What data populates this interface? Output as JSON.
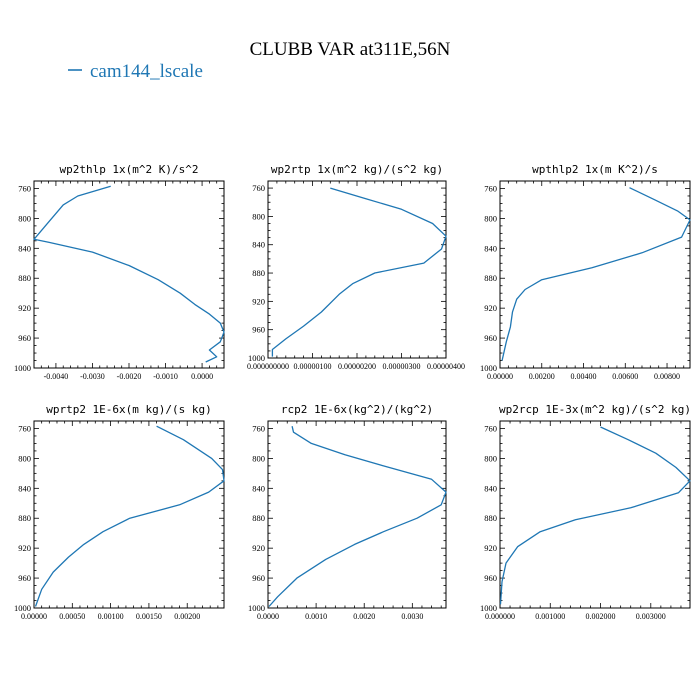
{
  "figure": {
    "title": "CLUBB VAR at311E,56N",
    "legend": {
      "label": "cam144_lscale",
      "color": "#1f77b4"
    },
    "line_color": "#1f77b4"
  },
  "chart_data": [
    {
      "type": "line",
      "title": "wp2thlp  1x(m^2 K)/s^2",
      "ylim": [
        1000,
        750
      ],
      "xlim": [
        -0.0046,
        0.0006
      ],
      "yticks": [
        760,
        800,
        840,
        880,
        920,
        960,
        1000
      ],
      "xticks": [
        -0.004,
        -0.003,
        -0.002,
        -0.001,
        0.0
      ],
      "xtick_labels": [
        "-0.0040",
        "-0.0030",
        "-0.0020",
        "-0.0010",
        "0.0000"
      ],
      "series": [
        {
          "x": [
            -0.0025,
            -0.0034,
            -0.0038,
            -0.0042,
            -0.0046,
            -0.0042,
            -0.003,
            -0.002,
            -0.0012,
            -0.0006,
            -0.0002,
            0.0002,
            0.0005,
            0.0006,
            0.0005,
            0.0002,
            0.0004,
            0.0001
          ],
          "y": [
            757,
            770,
            782,
            805,
            828,
            832,
            845,
            863,
            882,
            900,
            915,
            928,
            940,
            952,
            965,
            976,
            985,
            992
          ]
        }
      ]
    },
    {
      "type": "line",
      "title": "wp2rtp  1x(m^2 kg)/(s^2 kg)",
      "ylim": [
        1000,
        750
      ],
      "xlim": [
        0.0,
        4e-06
      ],
      "yticks": [
        760,
        800,
        840,
        880,
        920,
        960,
        1000
      ],
      "xticks": [
        0.0,
        1e-06,
        2e-06,
        3e-06,
        4e-06
      ],
      "xtick_labels": [
        "0.000000000",
        "0.00000100",
        "0.00000200",
        "0.00000300",
        "0.00000400"
      ],
      "series": [
        {
          "x": [
            1.4e-06,
            2.2e-06,
            3e-06,
            3.7e-06,
            4e-06,
            3.9e-06,
            3.5e-06,
            2.4e-06,
            1.9e-06,
            1.6e-06,
            1.2e-06,
            8e-07,
            4e-07,
            1e-07,
            1e-07
          ],
          "y": [
            760,
            775,
            790,
            810,
            828,
            846,
            866,
            880,
            895,
            910,
            935,
            955,
            973,
            988,
            998
          ]
        }
      ]
    },
    {
      "type": "line",
      "title": "wpthlp2  1x(m K^2)/s",
      "ylim": [
        1000,
        750
      ],
      "xlim": [
        0.0,
        0.0091
      ],
      "yticks": [
        760,
        800,
        840,
        880,
        920,
        960,
        1000
      ],
      "xticks": [
        0.0,
        0.002,
        0.004,
        0.006,
        0.008
      ],
      "xtick_labels": [
        "0.00000",
        "0.00200",
        "0.00400",
        "0.00600",
        "0.00800"
      ],
      "series": [
        {
          "x": [
            0.0062,
            0.0074,
            0.0085,
            0.0091,
            0.0087,
            0.0068,
            0.0044,
            0.002,
            0.0012,
            0.0008,
            0.0006,
            0.0005,
            0.0003,
            0.0001
          ],
          "y": [
            759,
            775,
            790,
            802,
            825,
            846,
            866,
            882,
            895,
            908,
            925,
            945,
            965,
            990
          ]
        }
      ]
    },
    {
      "type": "line",
      "title": "wprtp2  1E-6x(m kg)/(s kg)",
      "ylim": [
        1000,
        750
      ],
      "xlim": [
        0.0,
        0.00248
      ],
      "yticks": [
        760,
        800,
        840,
        880,
        920,
        960,
        1000
      ],
      "xticks": [
        0.0,
        0.0005,
        0.001,
        0.0015,
        0.002
      ],
      "xtick_labels": [
        "0.00000",
        "0.00050",
        "0.00100",
        "0.00150",
        "0.00200"
      ],
      "series": [
        {
          "x": [
            0.0016,
            0.00195,
            0.00232,
            0.00246,
            0.00248,
            0.00228,
            0.0019,
            0.00125,
            0.0009,
            0.00065,
            0.00045,
            0.00025,
            0.0001,
            2e-05
          ],
          "y": [
            757,
            775,
            800,
            815,
            830,
            845,
            862,
            880,
            898,
            915,
            932,
            952,
            975,
            998
          ]
        }
      ]
    },
    {
      "type": "line",
      "title": "rcp2  1E-6x(kg^2)/(kg^2)",
      "ylim": [
        1000,
        750
      ],
      "xlim": [
        0.0,
        0.0037
      ],
      "yticks": [
        760,
        800,
        840,
        880,
        920,
        960,
        1000
      ],
      "xticks": [
        0.0,
        0.001,
        0.002,
        0.003
      ],
      "xtick_labels": [
        "0.0000",
        "0.0010",
        "0.0020",
        "0.0030"
      ],
      "series": [
        {
          "x": [
            0.0005,
            0.00053,
            0.0009,
            0.0016,
            0.0024,
            0.0034,
            0.0037,
            0.0036,
            0.0031,
            0.0024,
            0.0018,
            0.0012,
            0.0006,
            0.0002,
            2e-05
          ],
          "y": [
            757,
            765,
            780,
            795,
            810,
            828,
            845,
            862,
            880,
            898,
            915,
            935,
            960,
            985,
            998
          ]
        }
      ]
    },
    {
      "type": "line",
      "title": "wp2rcp  1E-3x(m^2 kg)/(s^2 kg)",
      "ylim": [
        1000,
        750
      ],
      "xlim": [
        0.0,
        0.00378
      ],
      "yticks": [
        760,
        800,
        840,
        880,
        920,
        960,
        1000
      ],
      "xticks": [
        0.0,
        0.001,
        0.002,
        0.003
      ],
      "xtick_labels": [
        "0.000000",
        "0.001000",
        "0.002000",
        "0.003000"
      ],
      "series": [
        {
          "x": [
            0.002,
            0.00255,
            0.0031,
            0.0035,
            0.00378,
            0.00355,
            0.0026,
            0.0015,
            0.0008,
            0.00035,
            0.00012,
            4e-05,
            1e-05
          ],
          "y": [
            758,
            775,
            793,
            812,
            830,
            846,
            866,
            882,
            898,
            918,
            940,
            965,
            995
          ]
        }
      ]
    }
  ]
}
